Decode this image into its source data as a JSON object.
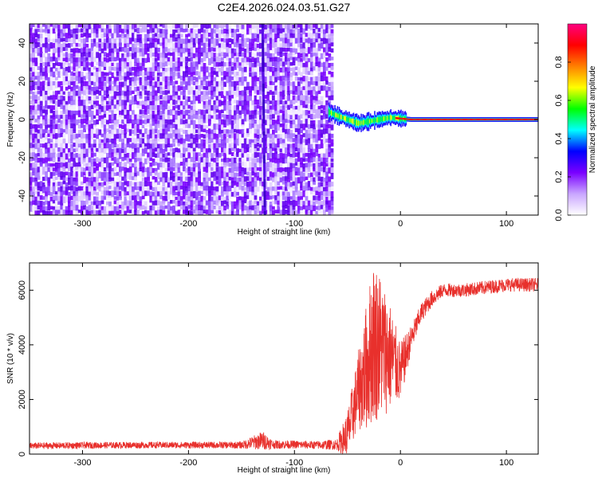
{
  "title": "C2E4.2026.024.03.51.G27",
  "chart_data": [
    {
      "type": "heatmap",
      "xlabel": "Height of straight line (km)",
      "ylabel": "Frequency (Hz)",
      "xlim": [
        -350,
        130
      ],
      "ylim": [
        -50,
        50
      ],
      "xticks": [
        -300,
        -200,
        -100,
        0,
        100
      ],
      "yticks": [
        -40,
        -20,
        0,
        20,
        40
      ],
      "data_extent_x": [
        -350,
        -65
      ],
      "noise_band_x": [
        -350,
        -65
      ],
      "spike_x": -130,
      "signal_line": {
        "x": [
          -68,
          -60,
          -50,
          -40,
          -30,
          -20,
          -10,
          0,
          10,
          50,
          100,
          130
        ],
        "y": [
          4,
          2,
          0,
          -2,
          -1,
          0,
          1,
          0.5,
          0,
          0,
          0,
          0
        ]
      },
      "colorbar": {
        "label": "Normalized spectral amplitude",
        "range": [
          0,
          1
        ],
        "ticks": [
          0.0,
          0.2,
          0.4,
          0.6,
          0.8
        ],
        "colors": [
          "#ffffff",
          "#c9a6ff",
          "#7a00ff",
          "#0000ff",
          "#00ffff",
          "#00ff00",
          "#ffff00",
          "#ff8000",
          "#ff0000",
          "#ff0080"
        ]
      }
    },
    {
      "type": "line",
      "xlabel": "Height of straight line (km)",
      "ylabel": "SNR (10 * v/v)",
      "xlim": [
        -350,
        130
      ],
      "ylim": [
        0,
        7000
      ],
      "xticks": [
        -300,
        -200,
        -100,
        0,
        100
      ],
      "yticks": [
        0,
        2000,
        4000,
        6000
      ],
      "line_color": "#e8302c",
      "series": [
        {
          "x": [
            -350,
            -300,
            -250,
            -200,
            -150,
            -130,
            -120,
            -100,
            -80,
            -60,
            -50,
            -45,
            -40,
            -35,
            -30,
            -25,
            -20,
            -15,
            -10,
            -5,
            0,
            10,
            20,
            30,
            40,
            60,
            80,
            100,
            130
          ],
          "y": [
            300,
            320,
            330,
            330,
            330,
            500,
            350,
            350,
            330,
            350,
            700,
            1500,
            2300,
            2800,
            3500,
            4200,
            4000,
            3800,
            3600,
            3300,
            3000,
            4200,
            5200,
            5700,
            6000,
            6000,
            6100,
            6200,
            6200
          ],
          "amplitude": [
            120,
            120,
            120,
            120,
            130,
            350,
            160,
            150,
            150,
            200,
            900,
            1100,
            1400,
            2000,
            2600,
            3000,
            2800,
            2400,
            2000,
            1500,
            1100,
            500,
            350,
            300,
            250,
            250,
            250,
            250,
            250
          ]
        }
      ]
    }
  ]
}
